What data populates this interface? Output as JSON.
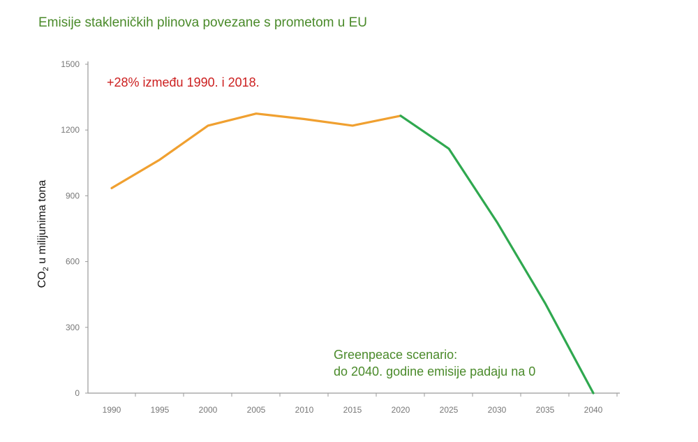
{
  "chart_data": {
    "type": "line",
    "title": "Emisije stakleničkih plinova povezane s prometom u EU",
    "xlabel": "",
    "ylabel_main": "CO",
    "ylabel_sub": "2",
    "ylabel_rest": " u milijunima tona",
    "xlim": [
      1990,
      2040
    ],
    "ylim": [
      0,
      1500
    ],
    "x_ticks": [
      1990,
      1995,
      2000,
      2005,
      2010,
      2015,
      2020,
      2025,
      2030,
      2035,
      2040
    ],
    "y_ticks": [
      0,
      300,
      600,
      900,
      1200,
      1500
    ],
    "series": [
      {
        "color": "#f0a030",
        "x": [
          1990,
          1995,
          2000,
          2005,
          2010,
          2015,
          2020
        ],
        "y": [
          935,
          1065,
          1220,
          1275,
          1250,
          1220,
          1265
        ]
      },
      {
        "color": "#2fa84f",
        "x": [
          2020,
          2025,
          2030,
          2035,
          2040
        ],
        "y": [
          1265,
          1115,
          780,
          410,
          0
        ]
      }
    ],
    "annotations": {
      "increase": "+28% između 1990. i 2018.",
      "scenario_line1": "Greenpeace scenario:",
      "scenario_line2": "do 2040. godine emisije padaju na 0"
    },
    "annotation_colors": {
      "increase": "#cc1f1f",
      "scenario": "#4a8a2a"
    },
    "grid": false,
    "legend": "none"
  }
}
